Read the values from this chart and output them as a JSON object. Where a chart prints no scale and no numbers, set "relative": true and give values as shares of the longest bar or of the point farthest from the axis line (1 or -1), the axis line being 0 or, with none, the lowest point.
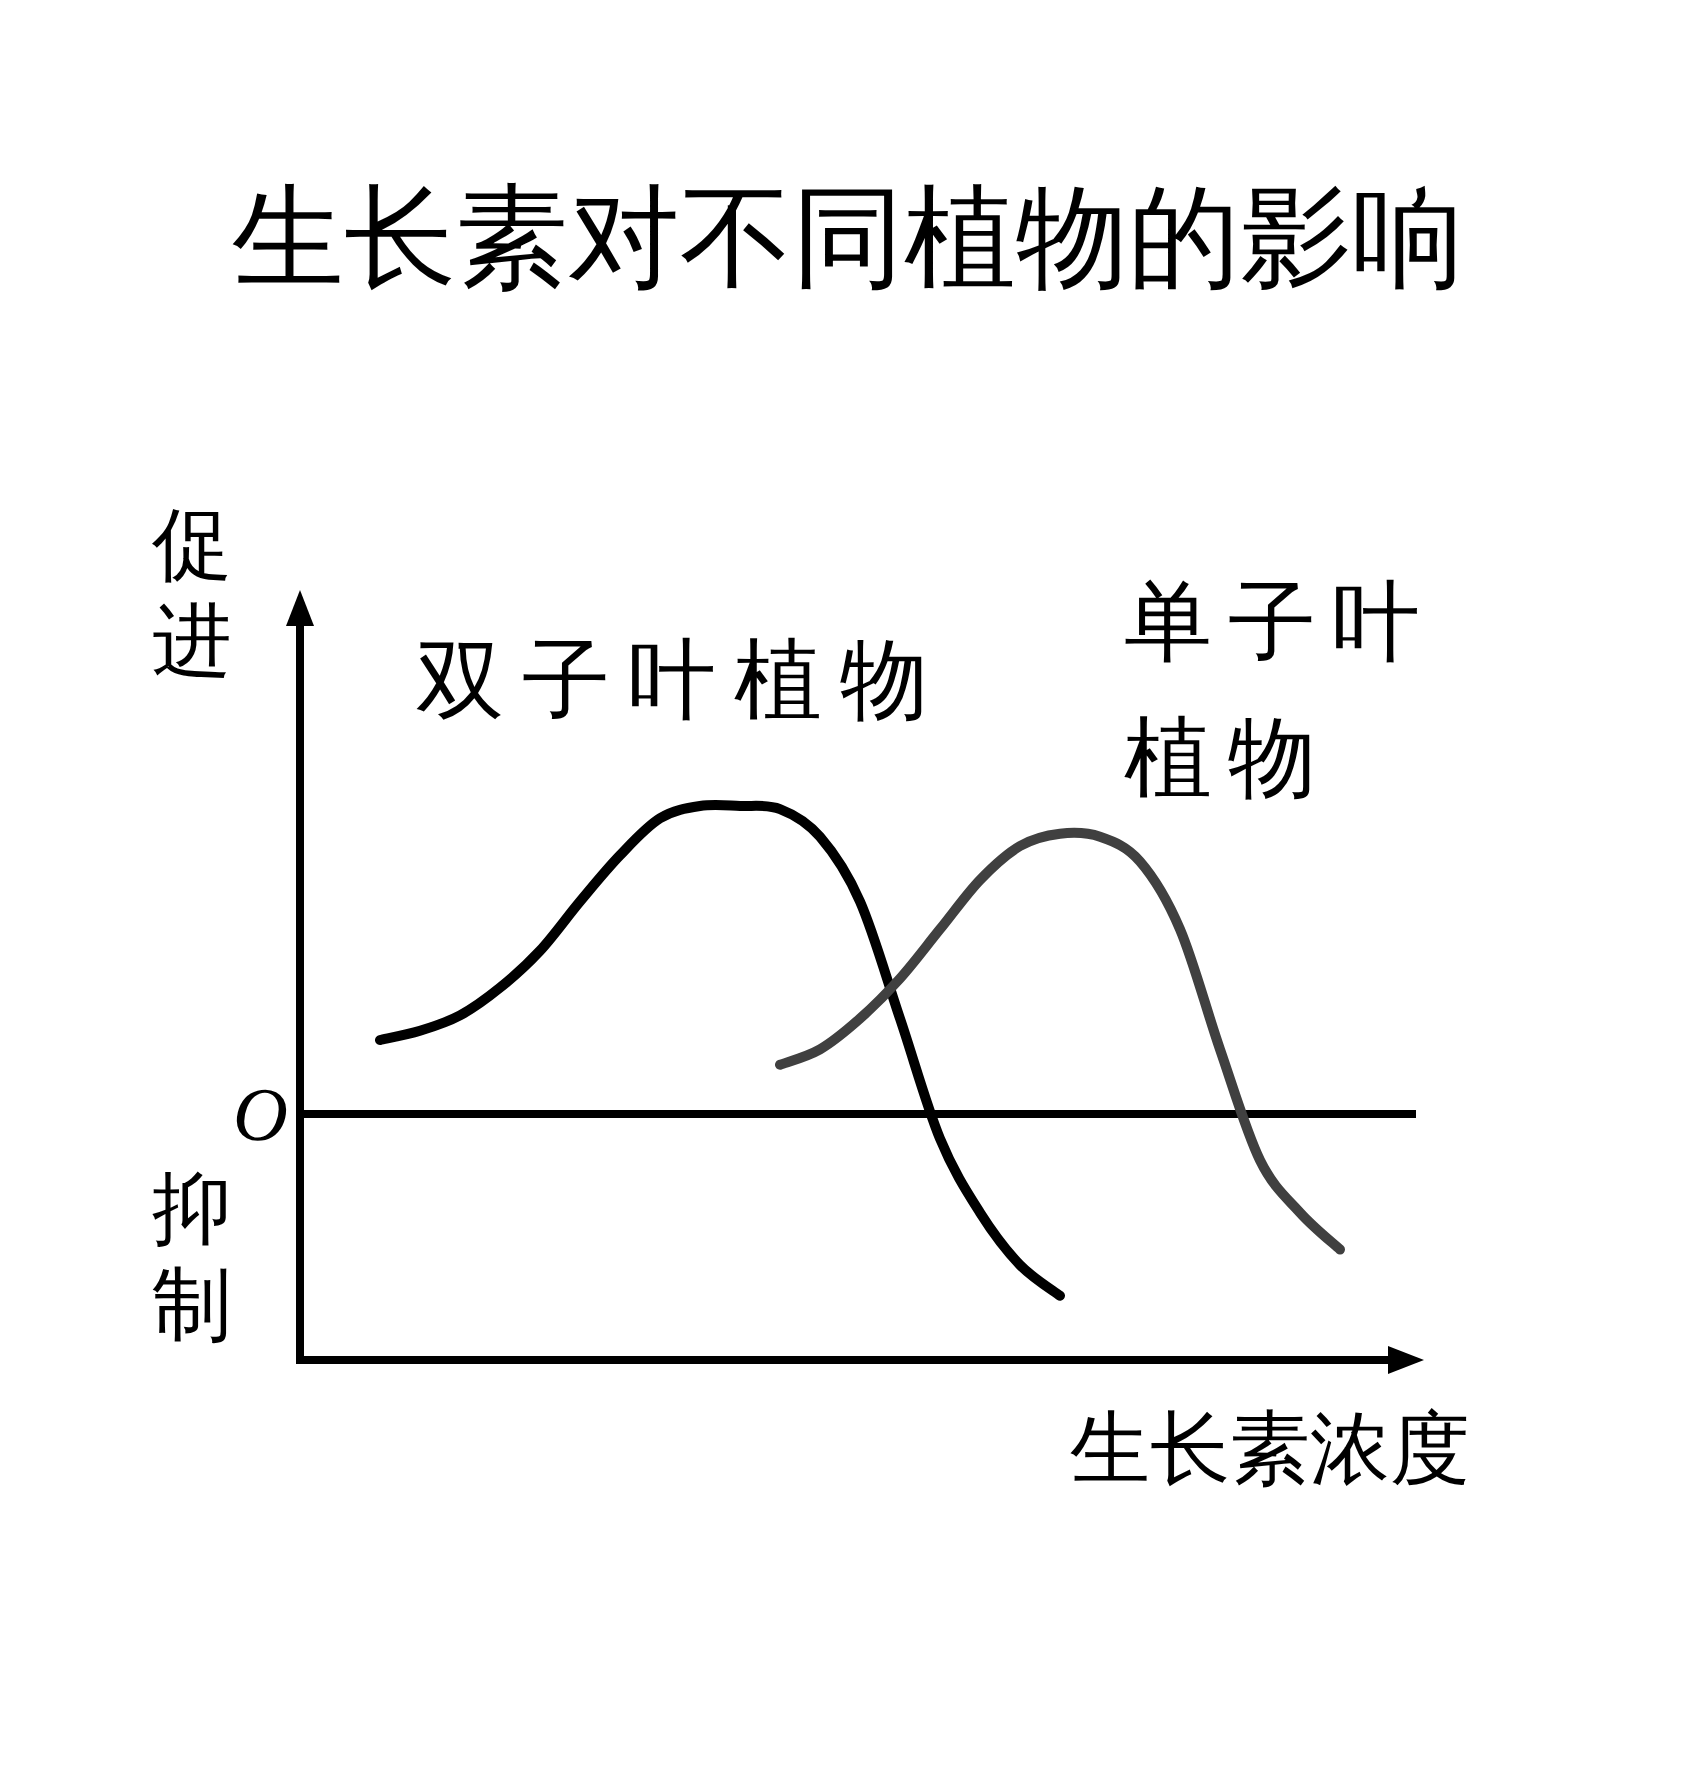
{
  "chart_data": {
    "type": "line",
    "title": "生长素对不同植物的影响",
    "xlabel": "生长素浓度",
    "relative": true,
    "categories": [
      null,
      null,
      null,
      null,
      null,
      null,
      null,
      null,
      null,
      null,
      null,
      null,
      null,
      null,
      null,
      null,
      null,
      null,
      null,
      null,
      null,
      null,
      null,
      null,
      null,
      null,
      null,
      null,
      null
    ],
    "series": [
      {
        "name": "双子叶植物",
        "color": "#000000",
        "values": [
          null,
          null,
          0.24,
          0.27,
          0.32,
          0.41,
          0.53,
          0.69,
          0.84,
          0.96,
          1.0,
          1.0,
          0.99,
          0.9,
          0.69,
          0.31,
          -0.08,
          -0.32,
          -0.49,
          -0.59,
          null,
          null,
          null,
          null,
          null,
          null,
          null,
          null,
          null
        ]
      },
      {
        "name": "单子叶植物",
        "color": "#404040",
        "values": [
          null,
          null,
          null,
          null,
          null,
          null,
          null,
          null,
          null,
          null,
          null,
          null,
          0.16,
          0.21,
          0.31,
          0.44,
          0.6,
          0.76,
          0.87,
          0.91,
          0.9,
          0.82,
          0.6,
          0.21,
          -0.15,
          -0.32,
          -0.44,
          null,
          null
        ]
      }
    ],
    "ref_lines": [
      {
        "axis": "y",
        "value": 0,
        "label": "O",
        "color": "#000000"
      }
    ],
    "annotations": [
      "促进",
      "抑制"
    ],
    "marker": "none",
    "line_style": "solid"
  }
}
